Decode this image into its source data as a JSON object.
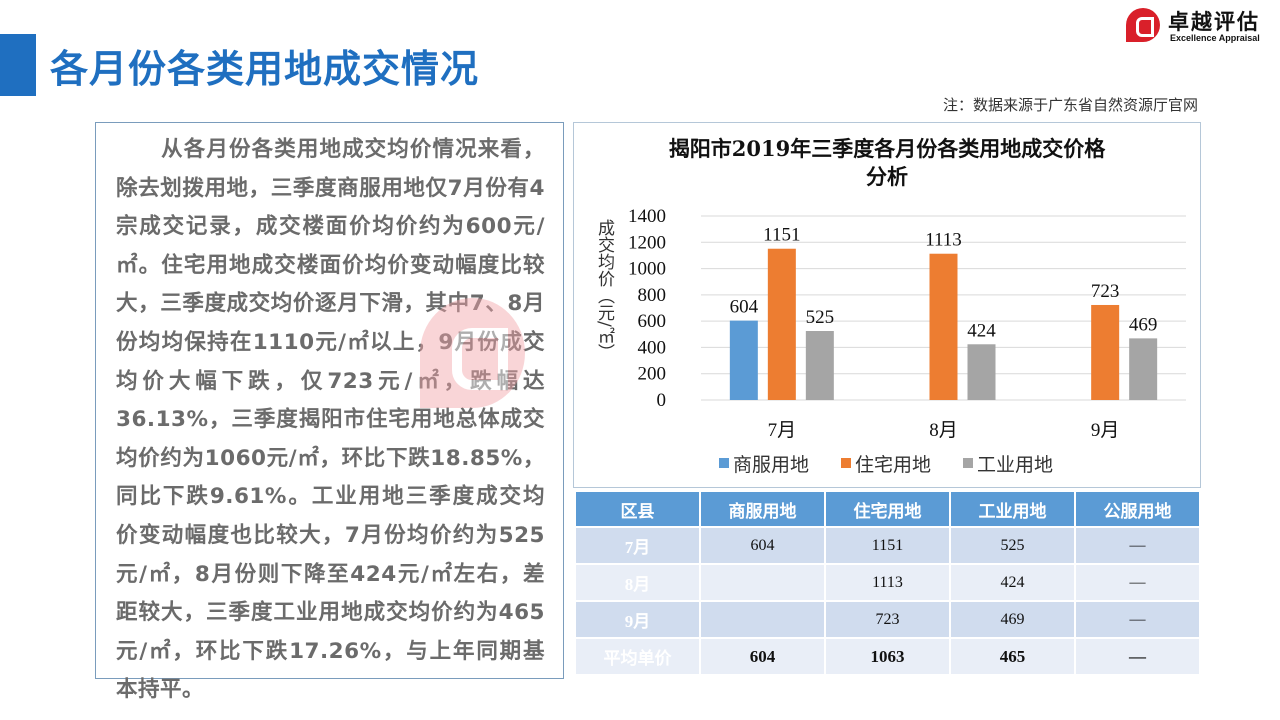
{
  "header": {
    "title": "各月份各类用地成交情况",
    "note": "注：数据来源于广东省自然资源厅官网"
  },
  "logo": {
    "cn": "卓越评估",
    "en": "Excellence Appraisal"
  },
  "body_text": "从各月份各类用地成交均价情况来看，除去划拨用地，三季度商服用地仅7月份有4宗成交记录，成交楼面价均价约为600元/㎡。住宅用地成交楼面价均价变动幅度比较大，三季度成交均价逐月下滑，其中7、8月份均均保持在1110元/㎡以上，9月份成交均价大幅下跌，仅723元/㎡，跌幅达36.13%，三季度揭阳市住宅用地总体成交均价约为1060元/㎡，环比下跌18.85%，同比下跌9.61%。工业用地三季度成交均价变动幅度也比较大，7月份均价约为525元/㎡，8月份则下降至424元/㎡左右，差距较大，三季度工业用地成交均价约为465元/㎡，环比下跌17.26%，与上年同期基本持平。",
  "chart_data": {
    "type": "bar",
    "title_line1": "揭阳市2019年三季度各月份各类用地成交价格",
    "title_line2": "分析",
    "ylabel": "成交均价（元/㎡）",
    "ylim": [
      0,
      1400
    ],
    "yticks": [
      0,
      200,
      400,
      600,
      800,
      1000,
      1200,
      1400
    ],
    "categories": [
      "7月",
      "8月",
      "9月"
    ],
    "series": [
      {
        "name": "商服用地",
        "color": "#5b9bd5",
        "values": [
          604,
          null,
          null
        ]
      },
      {
        "name": "住宅用地",
        "color": "#ed7d31",
        "values": [
          1151,
          1113,
          723
        ]
      },
      {
        "name": "工业用地",
        "color": "#a5a5a5",
        "values": [
          525,
          424,
          469
        ]
      }
    ],
    "grid": true,
    "legend": "bottom"
  },
  "table": {
    "headers": [
      "区县",
      "商服用地",
      "住宅用地",
      "工业用地",
      "公服用地"
    ],
    "rows": [
      [
        "7月",
        "604",
        "1151",
        "525",
        "—"
      ],
      [
        "8月",
        "",
        "1113",
        "424",
        "—"
      ],
      [
        "9月",
        "",
        "723",
        "469",
        "—"
      ],
      [
        "平均单价",
        "604",
        "1063",
        "465",
        "—"
      ]
    ]
  }
}
